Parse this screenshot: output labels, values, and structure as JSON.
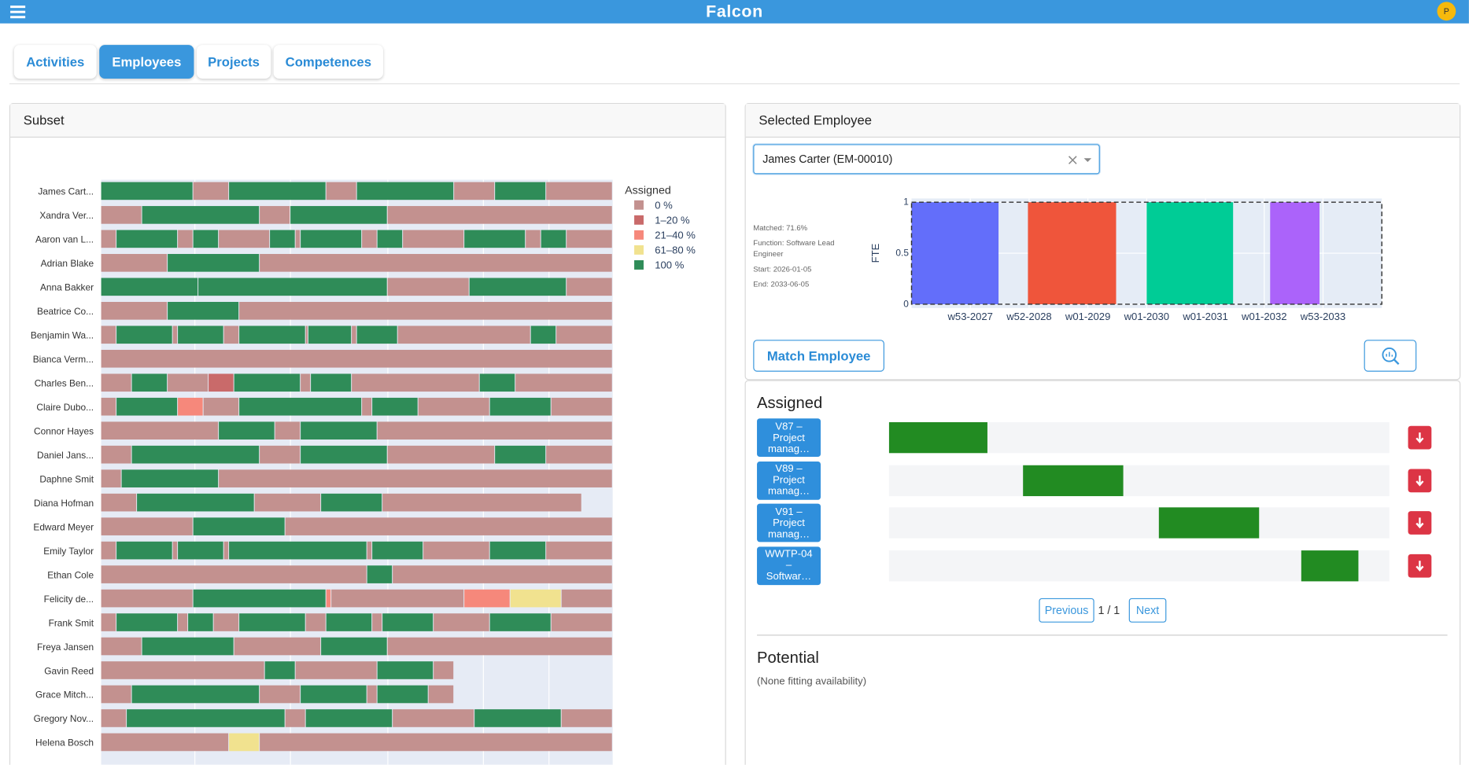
{
  "header": {
    "title": "Falcon",
    "avatar": "P"
  },
  "tabs": [
    {
      "label": "Activities",
      "active": false
    },
    {
      "label": "Employees",
      "active": true
    },
    {
      "label": "Projects",
      "active": false
    },
    {
      "label": "Competences",
      "active": false
    }
  ],
  "subset": {
    "title": "Subset",
    "legend_title": "Assigned",
    "legend": [
      {
        "label": "0 %",
        "color": "#c3918f"
      },
      {
        "label": "1–20 %",
        "color": "#c96a6a"
      },
      {
        "label": "21–40 %",
        "color": "#f6887b"
      },
      {
        "label": "61–80 %",
        "color": "#f1e28f"
      },
      {
        "label": "100 %",
        "color": "#2f8c58"
      }
    ],
    "rows": [
      {
        "name": "James Cart...",
        "segments": [
          [
            0,
            18,
            4
          ],
          [
            18,
            25,
            0
          ],
          [
            25,
            44,
            4
          ],
          [
            44,
            50,
            0
          ],
          [
            50,
            69,
            4
          ],
          [
            69,
            77,
            0
          ],
          [
            77,
            87,
            4
          ],
          [
            87,
            100,
            0
          ]
        ]
      },
      {
        "name": "Xandra Ver...",
        "segments": [
          [
            0,
            8,
            0
          ],
          [
            8,
            31,
            4
          ],
          [
            31,
            37,
            0
          ],
          [
            37,
            56,
            4
          ],
          [
            56,
            100,
            0
          ]
        ]
      },
      {
        "name": "Aaron van L...",
        "segments": [
          [
            0,
            3,
            0
          ],
          [
            3,
            15,
            4
          ],
          [
            15,
            18,
            0
          ],
          [
            18,
            23,
            4
          ],
          [
            23,
            33,
            0
          ],
          [
            33,
            38,
            4
          ],
          [
            38,
            39,
            0
          ],
          [
            39,
            51,
            4
          ],
          [
            51,
            54,
            0
          ],
          [
            54,
            59,
            4
          ],
          [
            59,
            71,
            0
          ],
          [
            71,
            83,
            4
          ],
          [
            83,
            86,
            0
          ],
          [
            86,
            91,
            4
          ],
          [
            91,
            100,
            0
          ]
        ]
      },
      {
        "name": "Adrian Blake",
        "segments": [
          [
            0,
            13,
            0
          ],
          [
            13,
            31,
            4
          ],
          [
            31,
            100,
            0
          ]
        ]
      },
      {
        "name": "Anna Bakker",
        "segments": [
          [
            0,
            19,
            4
          ],
          [
            19,
            56,
            4
          ],
          [
            56,
            72,
            0
          ],
          [
            72,
            91,
            4
          ],
          [
            91,
            100,
            0
          ]
        ]
      },
      {
        "name": "Beatrice Co...",
        "segments": [
          [
            0,
            13,
            0
          ],
          [
            13,
            27,
            4
          ],
          [
            27,
            100,
            0
          ]
        ]
      },
      {
        "name": "Benjamin Wa...",
        "segments": [
          [
            0,
            3,
            0
          ],
          [
            3,
            14,
            4
          ],
          [
            14,
            15,
            0
          ],
          [
            15,
            24,
            4
          ],
          [
            24,
            27,
            0
          ],
          [
            27,
            40,
            4
          ],
          [
            40,
            40.5,
            0
          ],
          [
            40.5,
            49,
            4
          ],
          [
            49,
            50,
            0
          ],
          [
            50,
            58,
            4
          ],
          [
            58,
            84,
            0
          ],
          [
            84,
            89,
            4
          ],
          [
            89,
            100,
            0
          ]
        ]
      },
      {
        "name": "Bianca Verm...",
        "segments": [
          [
            0,
            100,
            0
          ]
        ]
      },
      {
        "name": "Charles Ben...",
        "segments": [
          [
            0,
            6,
            0
          ],
          [
            6,
            13,
            4
          ],
          [
            13,
            21,
            0
          ],
          [
            21,
            26,
            1
          ],
          [
            26,
            39,
            4
          ],
          [
            39,
            41,
            0
          ],
          [
            41,
            49,
            4
          ],
          [
            49,
            74,
            0
          ],
          [
            74,
            81,
            4
          ],
          [
            81,
            100,
            0
          ]
        ]
      },
      {
        "name": "Claire Dubo...",
        "segments": [
          [
            0,
            3,
            0
          ],
          [
            3,
            15,
            4
          ],
          [
            15,
            20,
            2
          ],
          [
            20,
            27,
            0
          ],
          [
            27,
            51,
            4
          ],
          [
            51,
            53,
            0
          ],
          [
            53,
            62,
            4
          ],
          [
            62,
            76,
            0
          ],
          [
            76,
            88,
            4
          ],
          [
            88,
            100,
            0
          ]
        ]
      },
      {
        "name": "Connor Hayes",
        "segments": [
          [
            0,
            23,
            0
          ],
          [
            23,
            34,
            4
          ],
          [
            34,
            39,
            0
          ],
          [
            39,
            54,
            4
          ],
          [
            54,
            100,
            0
          ]
        ]
      },
      {
        "name": "Daniel Jans...",
        "segments": [
          [
            0,
            6,
            0
          ],
          [
            6,
            31,
            4
          ],
          [
            31,
            39,
            0
          ],
          [
            39,
            56,
            4
          ],
          [
            56,
            77,
            0
          ],
          [
            77,
            87,
            4
          ],
          [
            87,
            100,
            0
          ]
        ]
      },
      {
        "name": "Daphne Smit",
        "segments": [
          [
            0,
            4,
            0
          ],
          [
            4,
            23,
            4
          ],
          [
            23,
            100,
            0
          ]
        ]
      },
      {
        "name": "Diana Hofman",
        "segments": [
          [
            0,
            7,
            0
          ],
          [
            7,
            30,
            4
          ],
          [
            30,
            43,
            0
          ],
          [
            43,
            55,
            4
          ],
          [
            55,
            94,
            0
          ]
        ]
      },
      {
        "name": "Edward Meyer",
        "segments": [
          [
            0,
            18,
            0
          ],
          [
            18,
            36,
            4
          ],
          [
            36,
            100,
            0
          ]
        ]
      },
      {
        "name": "Emily Taylor",
        "segments": [
          [
            0,
            3,
            0
          ],
          [
            3,
            14,
            4
          ],
          [
            14,
            15,
            0
          ],
          [
            15,
            24,
            4
          ],
          [
            24,
            25,
            0
          ],
          [
            25,
            52,
            4
          ],
          [
            52,
            53,
            0
          ],
          [
            53,
            63,
            4
          ],
          [
            63,
            76,
            0
          ],
          [
            76,
            87,
            4
          ],
          [
            87,
            100,
            0
          ]
        ]
      },
      {
        "name": "Ethan Cole",
        "segments": [
          [
            0,
            52,
            0
          ],
          [
            52,
            57,
            4
          ],
          [
            57,
            100,
            0
          ]
        ]
      },
      {
        "name": "Felicity de...",
        "segments": [
          [
            0,
            18,
            0
          ],
          [
            18,
            44,
            4
          ],
          [
            44,
            45,
            2
          ],
          [
            45,
            71,
            0
          ],
          [
            71,
            80,
            2
          ],
          [
            80,
            90,
            3
          ],
          [
            90,
            100,
            0
          ]
        ]
      },
      {
        "name": "Frank Smit",
        "segments": [
          [
            0,
            3,
            0
          ],
          [
            3,
            15,
            4
          ],
          [
            15,
            17,
            0
          ],
          [
            17,
            22,
            4
          ],
          [
            22,
            27,
            0
          ],
          [
            27,
            40,
            4
          ],
          [
            40,
            44,
            0
          ],
          [
            44,
            53,
            4
          ],
          [
            53,
            55,
            0
          ],
          [
            55,
            65,
            4
          ],
          [
            65,
            76,
            0
          ],
          [
            76,
            88,
            4
          ],
          [
            88,
            100,
            0
          ]
        ]
      },
      {
        "name": "Freya Jansen",
        "segments": [
          [
            0,
            8,
            0
          ],
          [
            8,
            26,
            4
          ],
          [
            26,
            43,
            0
          ],
          [
            43,
            56,
            4
          ],
          [
            56,
            100,
            0
          ]
        ]
      },
      {
        "name": "Gavin Reed",
        "segments": [
          [
            0,
            32,
            0
          ],
          [
            32,
            38,
            4
          ],
          [
            38,
            54,
            0
          ],
          [
            54,
            65,
            4
          ],
          [
            65,
            69,
            0
          ]
        ]
      },
      {
        "name": "Grace Mitch...",
        "segments": [
          [
            0,
            6,
            0
          ],
          [
            6,
            31,
            4
          ],
          [
            31,
            39,
            0
          ],
          [
            39,
            52,
            4
          ],
          [
            52,
            54,
            0
          ],
          [
            54,
            64,
            4
          ],
          [
            64,
            69,
            0
          ]
        ]
      },
      {
        "name": "Gregory Nov...",
        "segments": [
          [
            0,
            5,
            0
          ],
          [
            5,
            36,
            4
          ],
          [
            36,
            40,
            0
          ],
          [
            40,
            57,
            4
          ],
          [
            57,
            73,
            0
          ],
          [
            73,
            90,
            4
          ],
          [
            90,
            100,
            0
          ]
        ]
      },
      {
        "name": "Helena Bosch",
        "segments": [
          [
            0,
            25,
            0
          ],
          [
            25,
            31,
            3
          ],
          [
            31,
            100,
            0
          ]
        ]
      }
    ]
  },
  "selected": {
    "title": "Selected Employee",
    "employee": "James Carter (EM-00010)",
    "info": [
      "Matched: 71.6%",
      "Function: Software Lead Engineer",
      "Start: 2026-01-05",
      "End: 2033-06-05"
    ],
    "match_button": "Match Employee",
    "chart": {
      "type": "bar",
      "ylabel": "FTE",
      "ylim": [
        0,
        1
      ],
      "yticks": [
        0,
        0.5,
        1
      ],
      "xlim": [
        0,
        8
      ],
      "xticks": [
        {
          "value": 1,
          "label": "w53-2027"
        },
        {
          "value": 2,
          "label": "w52-2028"
        },
        {
          "value": 3,
          "label": "w01-2029"
        },
        {
          "value": 4,
          "label": "w01-2030"
        },
        {
          "value": 5,
          "label": "w01-2031"
        },
        {
          "value": 6,
          "label": "w01-2032"
        },
        {
          "value": 7,
          "label": "w53-2033"
        }
      ],
      "required": {
        "start": 0,
        "end": 8,
        "value": 1
      },
      "bars": [
        {
          "start": 0,
          "end": 1.48,
          "value": 1,
          "color": "#636efa"
        },
        {
          "start": 1.98,
          "end": 3.48,
          "value": 1,
          "color": "#ef553b"
        },
        {
          "start": 4.0,
          "end": 5.47,
          "value": 1,
          "color": "#00cc96"
        },
        {
          "start": 6.1,
          "end": 6.94,
          "value": 1,
          "color": "#ab63fa"
        }
      ]
    }
  },
  "assigned": {
    "title": "Assigned",
    "items": [
      {
        "label": "V87 – Project manag…",
        "start": 0,
        "end": 19.7
      },
      {
        "label": "V89 – Project manag…",
        "start": 26.8,
        "end": 46.8
      },
      {
        "label": "V91 – Project manag…",
        "start": 54,
        "end": 74
      },
      {
        "label": "WWTP-04 – Softwar…",
        "start": 82.4,
        "end": 93.8
      }
    ],
    "previous": "Previous",
    "page": "1 / 1",
    "next": "Next"
  },
  "potential": {
    "title": "Potential",
    "text": "(None fitting availability)"
  }
}
